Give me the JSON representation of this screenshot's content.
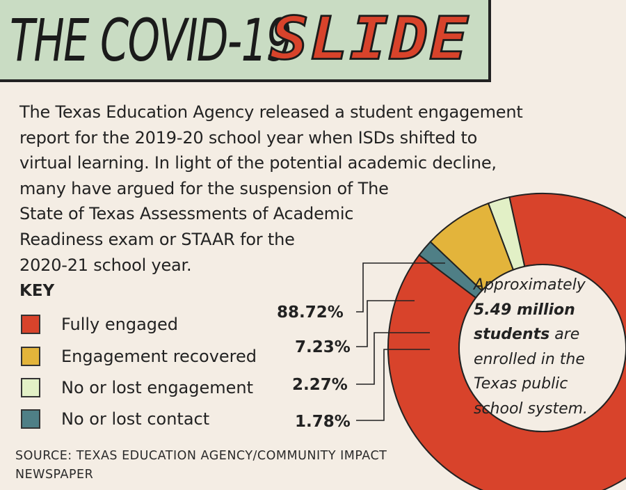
{
  "title": {
    "main": "THE COVID-19",
    "accent": "SLIDE"
  },
  "intro_lines": [
    "The Texas Education Agency released a student engagement",
    "report for the 2019-20 school year when ISDs shifted to",
    "virtual learning. In light of the potential academic decline,",
    "many have argued for the suspension of The",
    "State of Texas Assessments of Academic",
    "Readiness exam or STAAR for the",
    "2020-21 school year."
  ],
  "key": {
    "heading": "KEY",
    "items": [
      {
        "label": "Fully engaged",
        "color": "#d8432b"
      },
      {
        "label": "Engagement recovered",
        "color": "#e3b43b"
      },
      {
        "label": "No or lost engagement",
        "color": "#e2f0c6"
      },
      {
        "label": "No or lost contact",
        "color": "#4f7f86"
      }
    ]
  },
  "center_text": {
    "line1": "Approximately",
    "line2_bold": "5.49 million",
    "line3_bold": "students",
    "line3_rest": " are",
    "line4": "enrolled in the",
    "line5": "Texas public",
    "line6": "school system."
  },
  "source": "SOURCE: TEXAS EDUCATION AGENCY/COMMUNITY IMPACT NEWSPAPER",
  "chart_data": {
    "type": "pie",
    "subtype": "donut",
    "categories": [
      "Fully engaged",
      "Engagement recovered",
      "No or lost engagement",
      "No or lost contact"
    ],
    "values": [
      88.72,
      7.23,
      2.27,
      1.78
    ],
    "value_labels": [
      "88.72%",
      "7.23%",
      "2.27%",
      "1.78%"
    ],
    "colors": [
      "#d8432b",
      "#e3b43b",
      "#e2f0c6",
      "#4f7f86"
    ],
    "legend_placement": "left"
  }
}
